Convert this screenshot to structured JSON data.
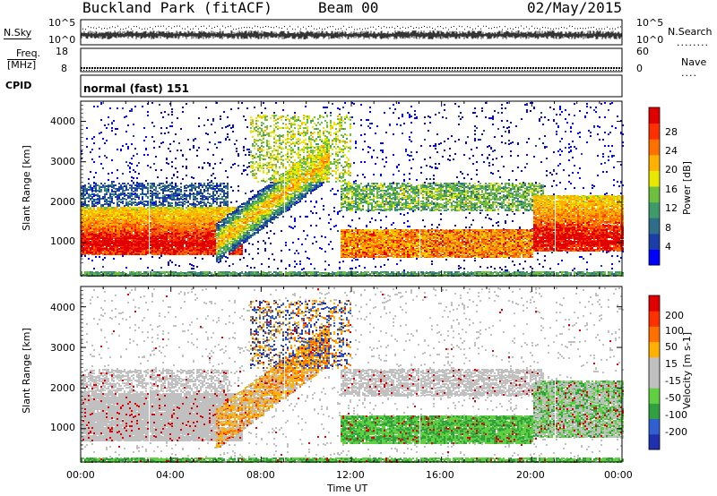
{
  "header": {
    "station": "Buckland Park (fitACF)",
    "beam": "Beam 00",
    "date": "02/May/2015"
  },
  "noise_panel": {
    "left_label": "N.Sky",
    "right_label": "N.Search",
    "left_ticks": [
      "10^5",
      "10^0"
    ],
    "right_ticks": [
      "10^5",
      "10^0"
    ]
  },
  "freq_panel": {
    "left_label_line1": "Freq.",
    "left_label_line2": "[MHz]",
    "right_label": "Nave",
    "left_ticks": [
      "18",
      "8"
    ],
    "right_ticks": [
      "60",
      "0"
    ]
  },
  "cpid": {
    "label": "CPID",
    "value": "normal (fast) 151"
  },
  "chart_data": [
    {
      "type": "heatmap",
      "name": "power",
      "ylabel": "Slant Range [km]",
      "xlim": [
        0,
        24
      ],
      "ylim": [
        180,
        4500
      ],
      "y_ticks": [
        "1000",
        "2000",
        "3000",
        "4000"
      ],
      "colorbar_label": "Power [dB]",
      "colorbar_ticks": [
        "28",
        "24",
        "20",
        "16",
        "12",
        "8",
        "4"
      ],
      "colorbar_colors": [
        "#0000ff",
        "#1a3fa6",
        "#2e6e8a",
        "#3f9a6a",
        "#6fbf3f",
        "#e8e800",
        "#ffb000",
        "#ff7000",
        "#ff3000",
        "#e00000"
      ]
    },
    {
      "type": "heatmap",
      "name": "velocity",
      "xlabel": "Time UT",
      "ylabel": "Slant Range [km]",
      "xlim": [
        0,
        24
      ],
      "ylim": [
        180,
        4500
      ],
      "x_ticks": [
        "00:00",
        "04:00",
        "08:00",
        "12:00",
        "16:00",
        "20:00",
        "00:00"
      ],
      "y_ticks": [
        "1000",
        "2000",
        "3000",
        "4000"
      ],
      "colorbar_label": "Velocity [m s-1]",
      "colorbar_ticks": [
        "200",
        "100",
        "50",
        "15",
        "-15",
        "-50",
        "-100",
        "-200"
      ],
      "colorbar_colors": [
        "#2030b0",
        "#3060d0",
        "#30a040",
        "#60d040",
        "#c0c0c0",
        "#c0c0c0",
        "#ffb000",
        "#ff7000",
        "#ff3000",
        "#e00000"
      ]
    }
  ]
}
